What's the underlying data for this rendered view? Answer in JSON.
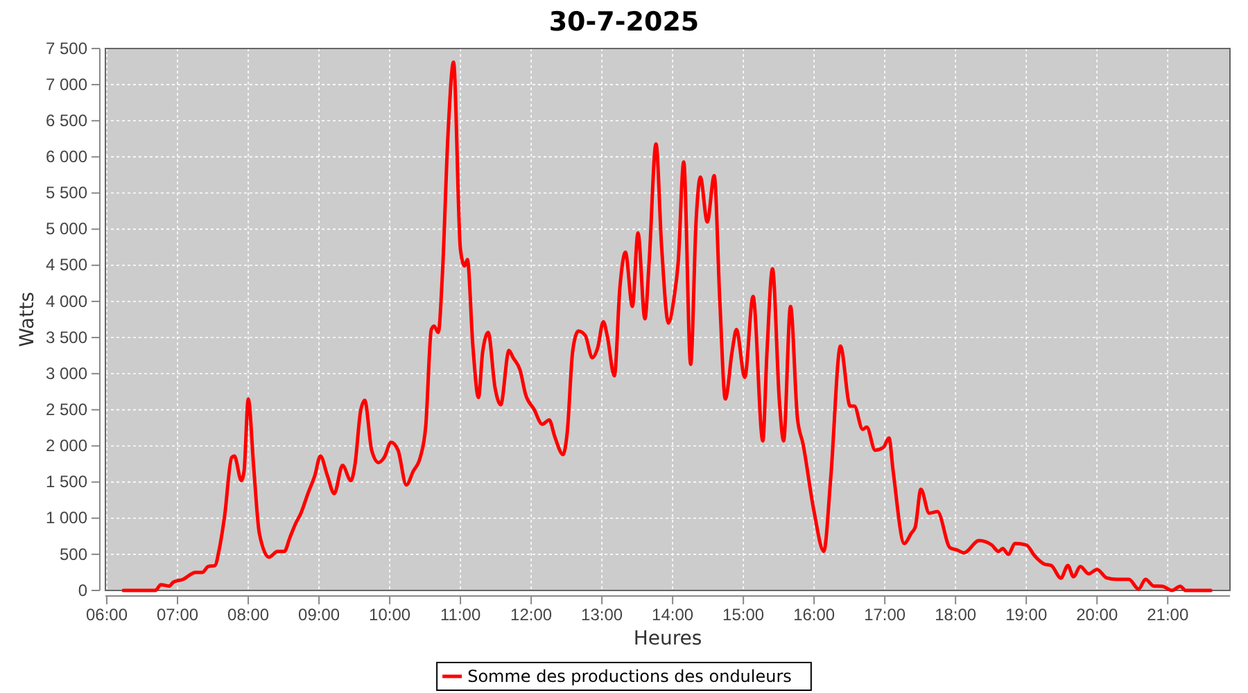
{
  "chart_data": {
    "type": "line",
    "title": "30-7-2025",
    "xlabel": "Heures",
    "ylabel": "Watts",
    "xlim": [
      5.98,
      21.88
    ],
    "xticks": [
      {
        "value": 6,
        "label": "06:00"
      },
      {
        "value": 7,
        "label": "07:00"
      },
      {
        "value": 8,
        "label": "08:00"
      },
      {
        "value": 9,
        "label": "09:00"
      },
      {
        "value": 10,
        "label": "10:00"
      },
      {
        "value": 11,
        "label": "11:00"
      },
      {
        "value": 12,
        "label": "12:00"
      },
      {
        "value": 13,
        "label": "13:00"
      },
      {
        "value": 14,
        "label": "14:00"
      },
      {
        "value": 15,
        "label": "15:00"
      },
      {
        "value": 16,
        "label": "16:00"
      },
      {
        "value": 17,
        "label": "17:00"
      },
      {
        "value": 18,
        "label": "18:00"
      },
      {
        "value": 19,
        "label": "19:00"
      },
      {
        "value": 20,
        "label": "20:00"
      },
      {
        "value": 21,
        "label": "21:00"
      }
    ],
    "ylim": [
      0,
      7500
    ],
    "yticks": [
      0,
      500,
      {
        "value": 1000,
        "label": "1 000"
      },
      {
        "value": 1500,
        "label": "1 500"
      },
      {
        "value": 2000,
        "label": "2 000"
      },
      {
        "value": 2500,
        "label": "2 500"
      },
      {
        "value": 3000,
        "label": "3 000"
      },
      {
        "value": 3500,
        "label": "3 500"
      },
      {
        "value": 4000,
        "label": "4 000"
      },
      {
        "value": 4500,
        "label": "4 500"
      },
      {
        "value": 5000,
        "label": "5 000"
      },
      {
        "value": 5500,
        "label": "5 500"
      },
      {
        "value": 6000,
        "label": "6 000"
      },
      {
        "value": 6500,
        "label": "6 500"
      },
      {
        "value": 7000,
        "label": "7 000"
      },
      {
        "value": 7500,
        "label": "7 500"
      }
    ],
    "grid": true,
    "legend": "bottom",
    "marker": "none",
    "line_style": "solid",
    "series": [
      {
        "name": "Somme des productions des onduleurs",
        "color": "#ff0000",
        "x": [
          6.235,
          6.686,
          6.765,
          6.882,
          6.941,
          7.078,
          7.255,
          7.353,
          7.431,
          7.529,
          7.588,
          7.667,
          7.765,
          7.804,
          7.902,
          7.941,
          8.0,
          8.078,
          8.157,
          8.294,
          8.412,
          8.51,
          8.588,
          8.667,
          8.745,
          8.843,
          8.941,
          9.02,
          9.118,
          9.216,
          9.333,
          9.451,
          9.51,
          9.588,
          9.647,
          9.745,
          9.843,
          9.922,
          10.02,
          10.118,
          10.235,
          10.333,
          10.431,
          10.51,
          10.588,
          10.627,
          10.686,
          10.745,
          10.824,
          10.902,
          11.0,
          11.059,
          11.098,
          11.176,
          11.255,
          11.314,
          11.392,
          11.49,
          11.569,
          11.686,
          11.745,
          11.843,
          11.922,
          12.039,
          12.157,
          12.255,
          12.333,
          12.451,
          12.51,
          12.588,
          12.667,
          12.765,
          12.863,
          12.941,
          13.02,
          13.078,
          13.176,
          13.255,
          13.333,
          13.431,
          13.51,
          13.608,
          13.667,
          13.765,
          13.843,
          13.941,
          14.02,
          14.078,
          14.157,
          14.255,
          14.333,
          14.392,
          14.49,
          14.588,
          14.667,
          14.745,
          14.843,
          14.902,
          15.02,
          15.137,
          15.275,
          15.333,
          15.412,
          15.51,
          15.569,
          15.667,
          15.765,
          15.843,
          16.0,
          16.137,
          16.235,
          16.373,
          16.51,
          16.569,
          16.686,
          16.745,
          16.863,
          16.98,
          17.059,
          17.118,
          17.275,
          17.373,
          17.431,
          17.51,
          17.627,
          17.745,
          17.922,
          18.02,
          18.118,
          18.333,
          18.51,
          18.608,
          18.667,
          18.745,
          18.843,
          19.0,
          19.118,
          19.255,
          19.353,
          19.49,
          19.588,
          19.667,
          19.765,
          19.882,
          20.0,
          20.137,
          20.275,
          20.451,
          20.588,
          20.686,
          20.804,
          20.922,
          21.059,
          21.176,
          21.255,
          21.608
        ],
        "values": [
          0,
          0,
          80,
          60,
          115,
          153,
          250,
          250,
          330,
          345,
          560,
          1040,
          1840,
          1860,
          1520,
          1650,
          2650,
          1690,
          790,
          460,
          540,
          540,
          730,
          920,
          1070,
          1340,
          1590,
          1860,
          1590,
          1340,
          1730,
          1520,
          1750,
          2480,
          2630,
          1940,
          1770,
          1840,
          2050,
          1940,
          1460,
          1650,
          1840,
          2280,
          3610,
          3660,
          3570,
          4370,
          6310,
          7310,
          4720,
          4490,
          4580,
          3380,
          2670,
          3300,
          3570,
          2800,
          2570,
          3320,
          3220,
          3050,
          2710,
          2510,
          2300,
          2360,
          2130,
          1880,
          2190,
          3320,
          3590,
          3530,
          3220,
          3360,
          3720,
          3510,
          2970,
          4200,
          4680,
          3930,
          4950,
          3760,
          4530,
          6180,
          4780,
          3700,
          4050,
          4530,
          5930,
          3130,
          5140,
          5720,
          5100,
          5740,
          4010,
          2650,
          3320,
          3610,
          2950,
          4070,
          2070,
          3280,
          4450,
          2610,
          2070,
          3930,
          2380,
          2030,
          1090,
          540,
          1550,
          3380,
          2550,
          2550,
          2230,
          2260,
          1940,
          1980,
          2110,
          1650,
          650,
          790,
          880,
          1400,
          1070,
          1090,
          590,
          560,
          520,
          690,
          630,
          540,
          580,
          500,
          650,
          630,
          480,
          365,
          345,
          170,
          345,
          190,
          330,
          230,
          290,
          173,
          153,
          153,
          20,
          153,
          60,
          58,
          0,
          58,
          0,
          0
        ]
      }
    ]
  }
}
